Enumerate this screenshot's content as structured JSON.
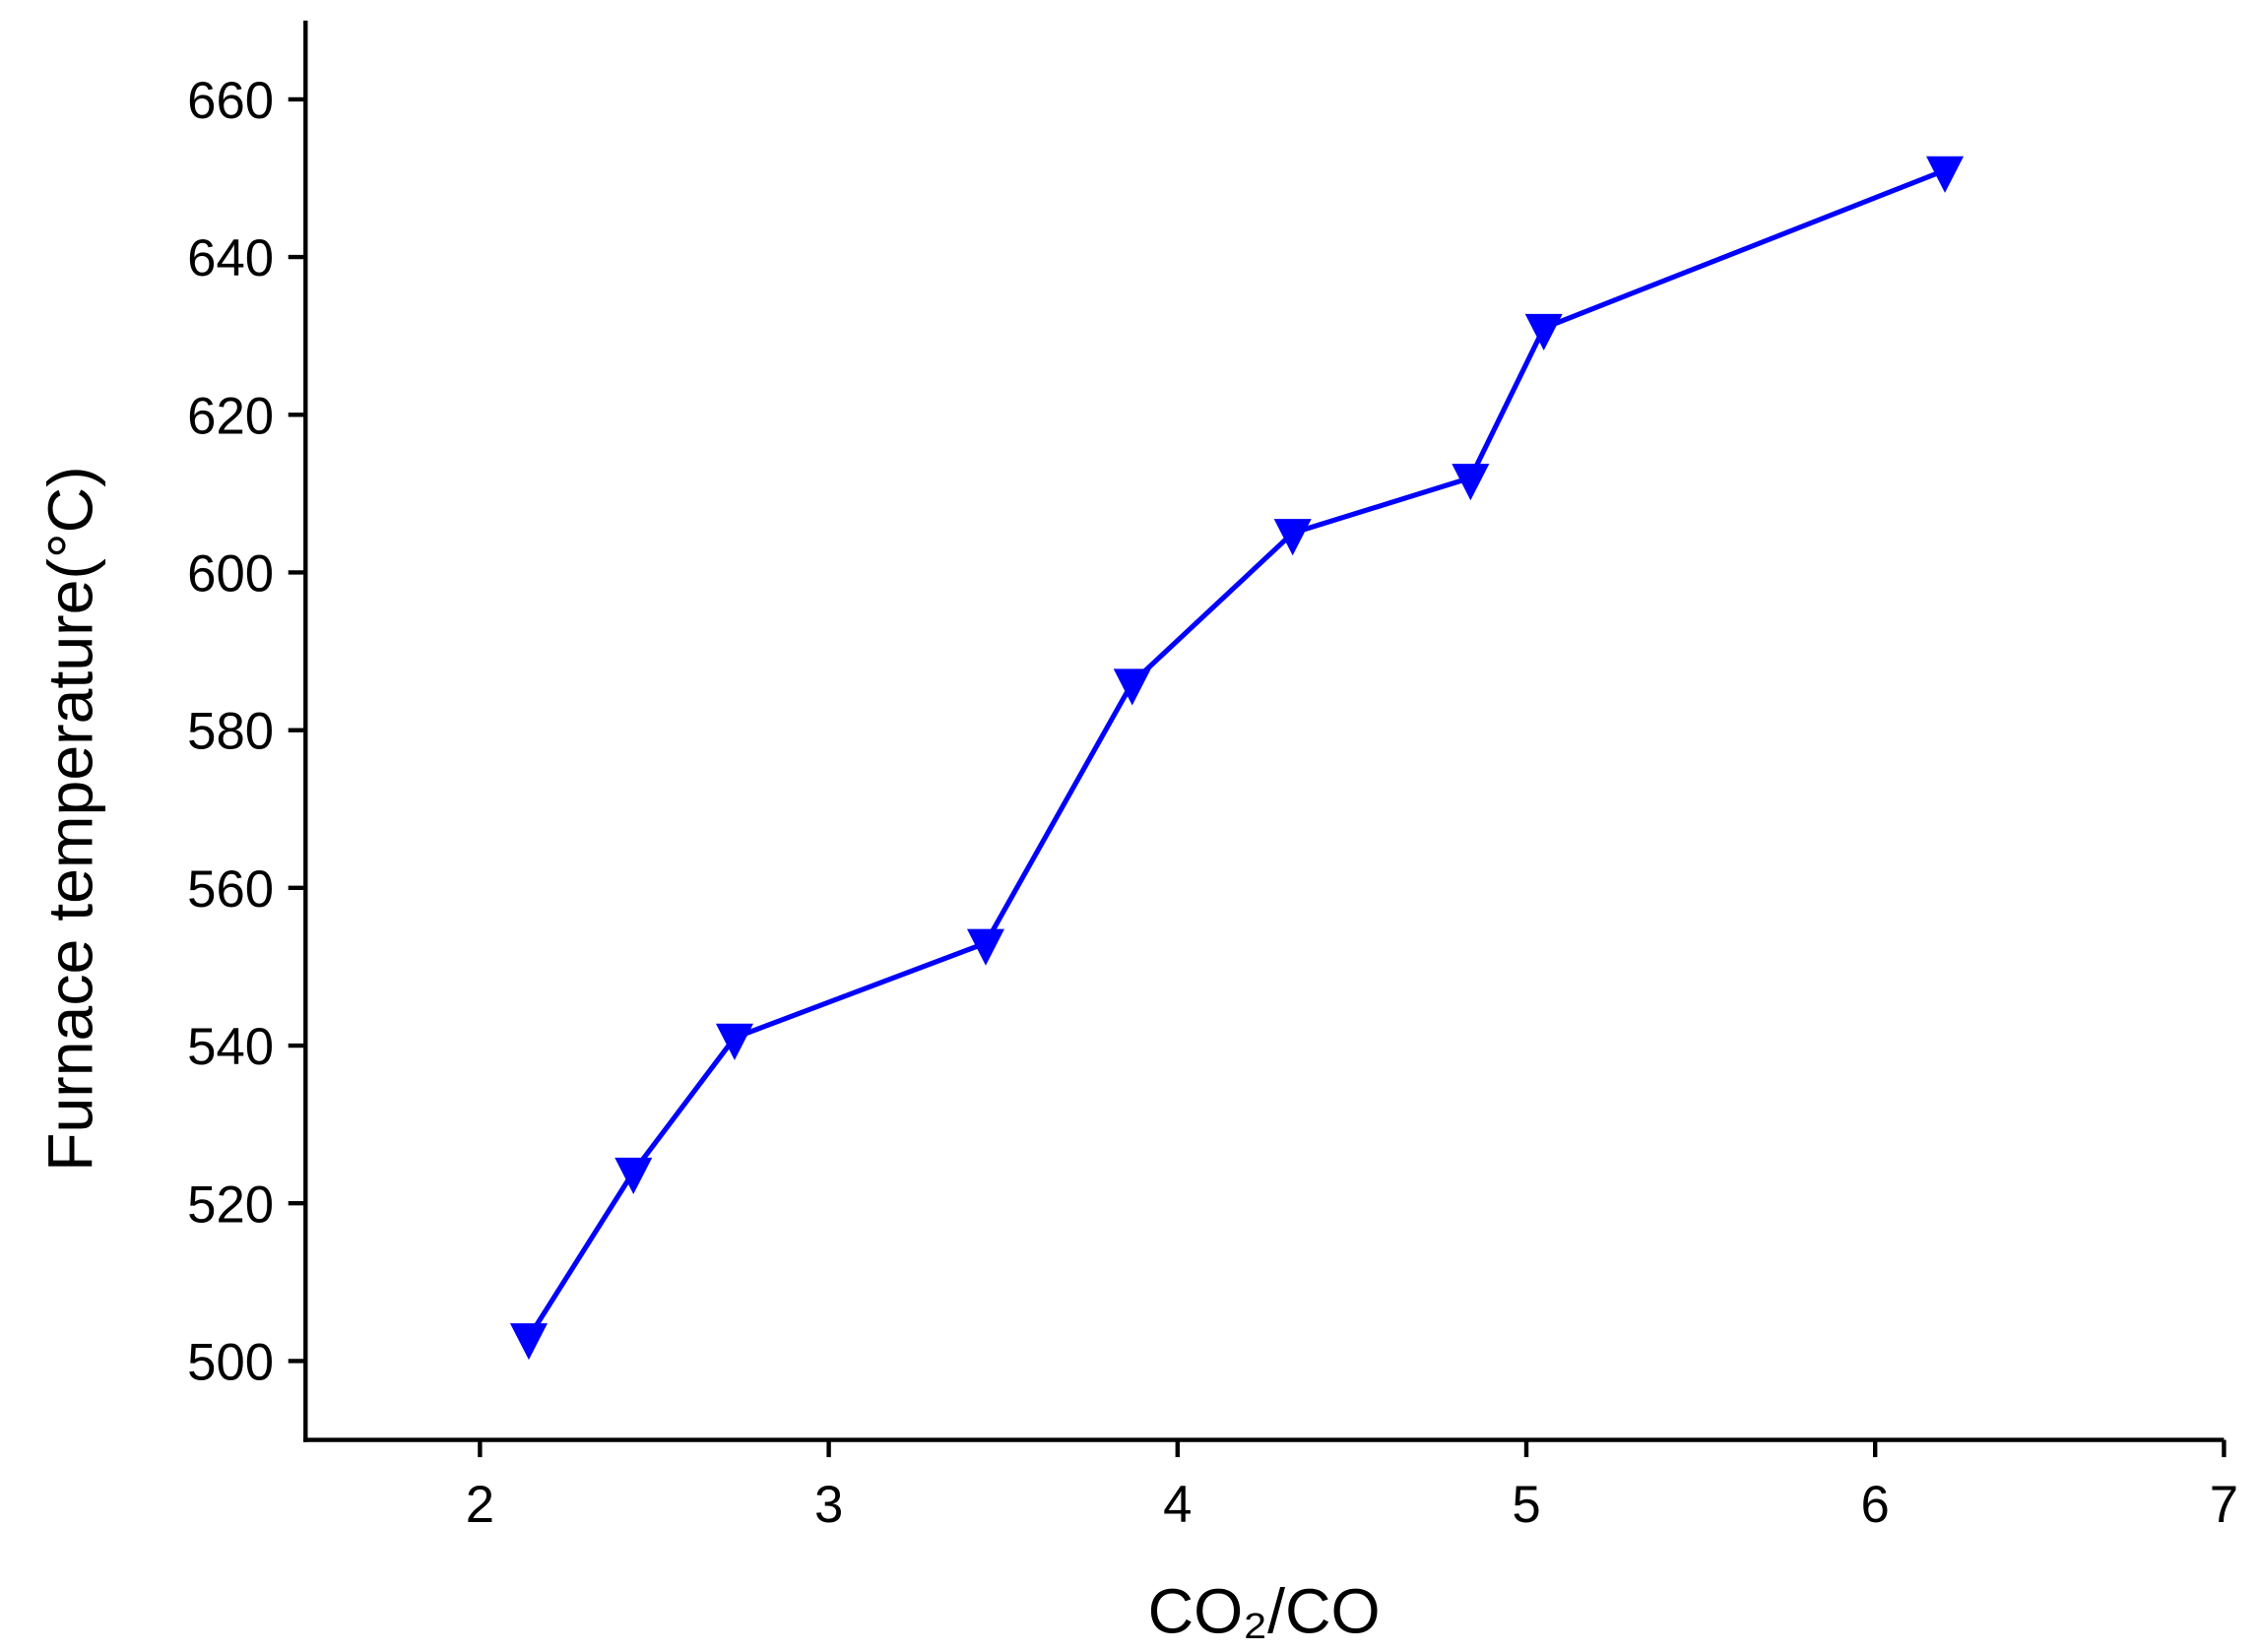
{
  "chart_data": {
    "type": "line",
    "x_label": "CO₂/CO",
    "y_label": "Furnace temperature(°C)",
    "x": [
      2.14,
      2.44,
      2.73,
      3.45,
      3.87,
      4.33,
      4.84,
      5.05,
      6.2
    ],
    "series": [
      {
        "color": "#0000ff",
        "marker": "triangle-down",
        "values": [
          503,
          524,
          541,
          553,
          586,
          605,
          612,
          631,
          651
        ]
      }
    ],
    "xlim": [
      1.5,
      7
    ],
    "xticks": [
      2,
      3,
      4,
      5,
      6,
      7
    ],
    "ylim": [
      490,
      670
    ],
    "yticks": [
      500,
      520,
      540,
      560,
      580,
      600,
      620,
      640,
      660
    ],
    "grid": false
  }
}
